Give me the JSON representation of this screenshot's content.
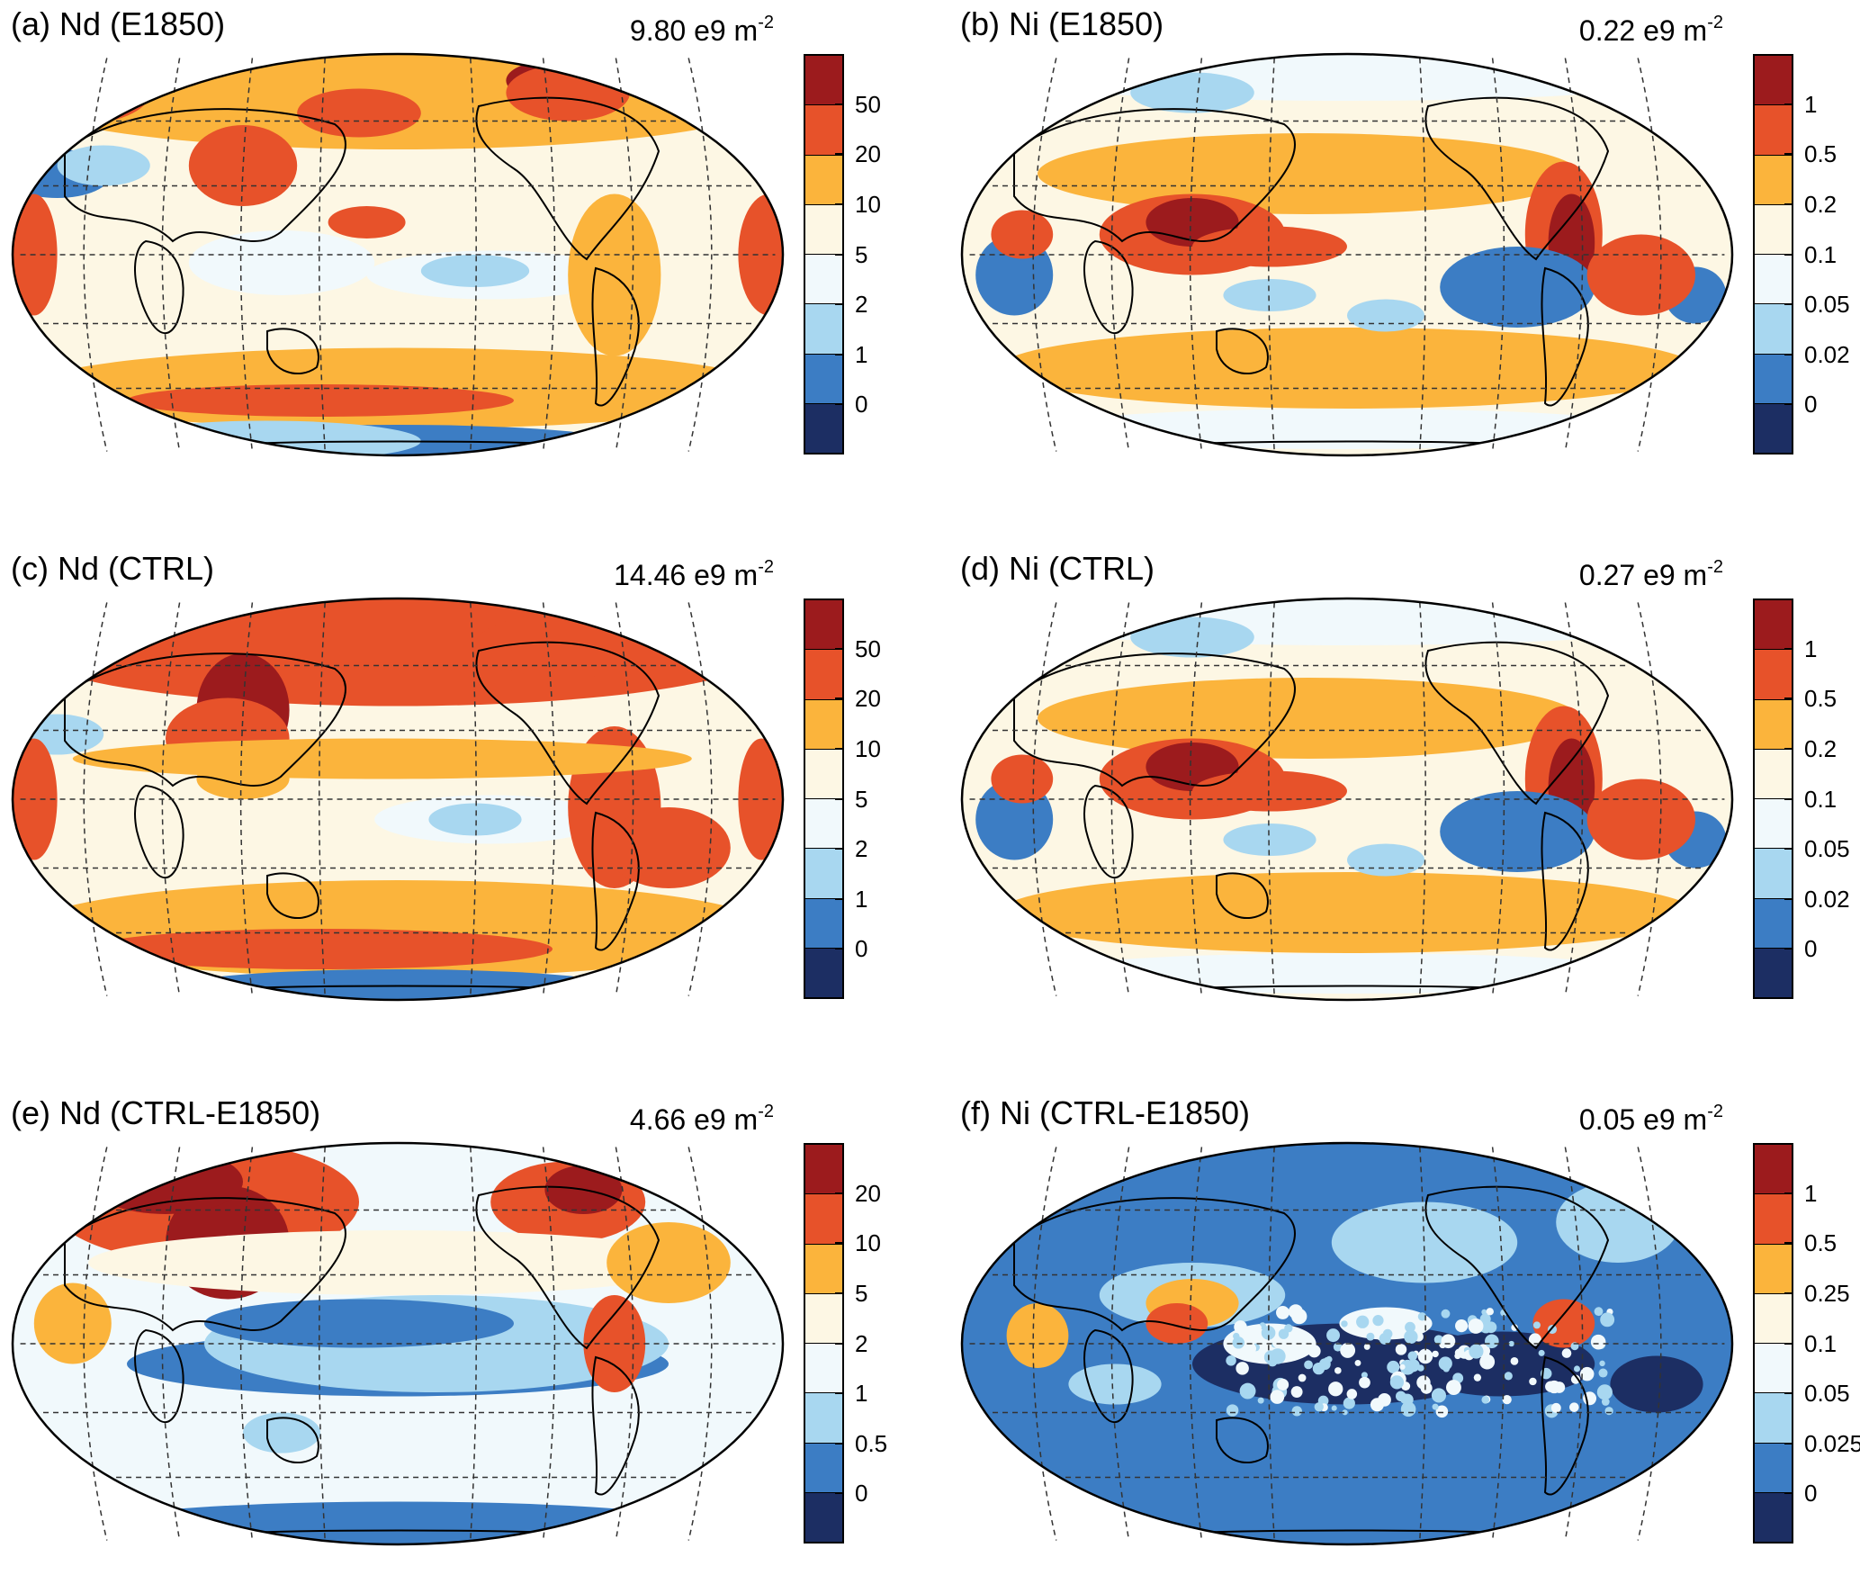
{
  "colors": {
    "c0": "#1c2e63",
    "c1": "#3c7dc4",
    "c2": "#a8d7f0",
    "c3": "#f1f9fc",
    "c4": "#fdf7e4",
    "c5": "#fbb43c",
    "c6": "#e7522a",
    "c7": "#9c1b1d",
    "coast": "#000000",
    "grid": "#333333"
  },
  "panels": [
    {
      "id": "a",
      "title": "(a) Nd (E1850)",
      "value": "9.80 e9 m",
      "exponent": "-2",
      "levels": [
        "50",
        "20",
        "10",
        "5",
        "2",
        "1",
        "0"
      ],
      "style": "nd"
    },
    {
      "id": "b",
      "title": "(b) Ni (E1850)",
      "value": "0.22 e9 m",
      "exponent": "-2",
      "levels": [
        "1",
        "0.5",
        "0.2",
        "0.1",
        "0.05",
        "0.02",
        "0"
      ],
      "style": "ni"
    },
    {
      "id": "c",
      "title": "(c) Nd (CTRL)",
      "value": "14.46 e9 m",
      "exponent": "-2",
      "levels": [
        "50",
        "20",
        "10",
        "5",
        "2",
        "1",
        "0"
      ],
      "style": "nd_ctrl"
    },
    {
      "id": "d",
      "title": "(d) Ni (CTRL)",
      "value": "0.27 e9 m",
      "exponent": "-2",
      "levels": [
        "1",
        "0.5",
        "0.2",
        "0.1",
        "0.05",
        "0.02",
        "0"
      ],
      "style": "ni"
    },
    {
      "id": "e",
      "title": "(e) Nd (CTRL-E1850)",
      "value": "4.66 e9 m",
      "exponent": "-2",
      "levels": [
        "20",
        "10",
        "5",
        "2",
        "1",
        "0.5",
        "0"
      ],
      "style": "nd_diff"
    },
    {
      "id": "f",
      "title": "(f) Ni (CTRL-E1850)",
      "value": "0.05 e9 m",
      "exponent": "-2",
      "levels": [
        "1",
        "0.5",
        "0.25",
        "0.1",
        "0.05",
        "0.025",
        "0"
      ],
      "style": "ni_diff"
    }
  ]
}
